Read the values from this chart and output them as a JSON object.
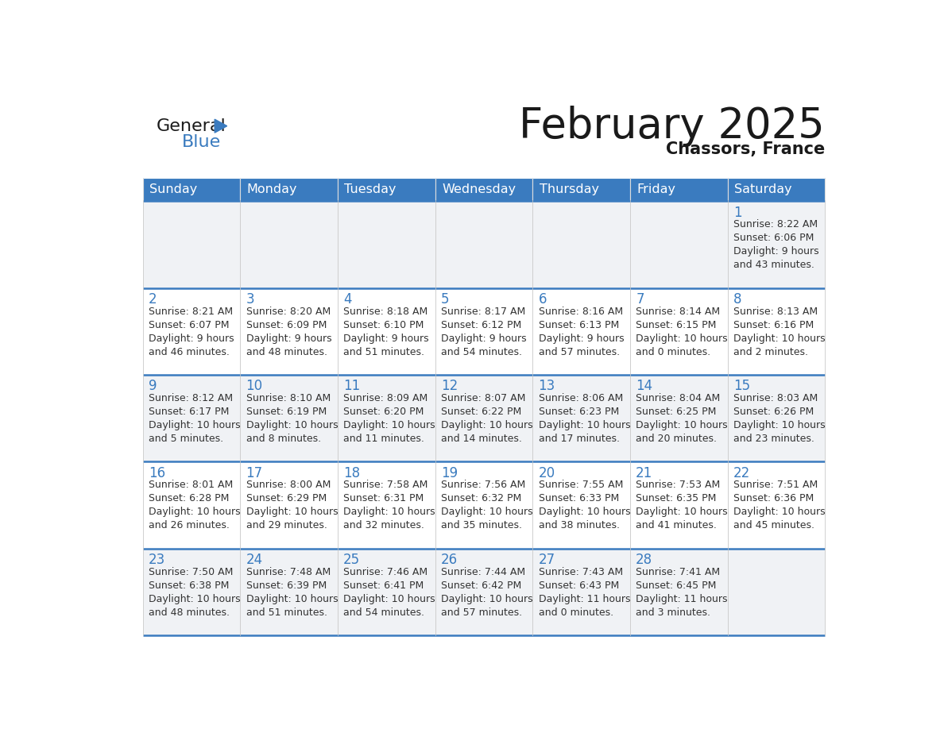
{
  "title": "February 2025",
  "subtitle": "Chassors, France",
  "header_color": "#3a7bbf",
  "header_text_color": "#ffffff",
  "cell_bg_color": "#ffffff",
  "row_separator_color": "#3a7bbf",
  "day_num_color": "#3a7bbf",
  "text_color": "#333333",
  "border_color": "#3a7bbf",
  "grid_color": "#cccccc",
  "days_of_week": [
    "Sunday",
    "Monday",
    "Tuesday",
    "Wednesday",
    "Thursday",
    "Friday",
    "Saturday"
  ],
  "calendar_data": [
    [
      null,
      null,
      null,
      null,
      null,
      null,
      {
        "day": "1",
        "sunrise": "8:22 AM",
        "sunset": "6:06 PM",
        "daylight_h": "9 hours",
        "daylight_m": "and 43 minutes."
      }
    ],
    [
      {
        "day": "2",
        "sunrise": "8:21 AM",
        "sunset": "6:07 PM",
        "daylight_h": "9 hours",
        "daylight_m": "and 46 minutes."
      },
      {
        "day": "3",
        "sunrise": "8:20 AM",
        "sunset": "6:09 PM",
        "daylight_h": "9 hours",
        "daylight_m": "and 48 minutes."
      },
      {
        "day": "4",
        "sunrise": "8:18 AM",
        "sunset": "6:10 PM",
        "daylight_h": "9 hours",
        "daylight_m": "and 51 minutes."
      },
      {
        "day": "5",
        "sunrise": "8:17 AM",
        "sunset": "6:12 PM",
        "daylight_h": "9 hours",
        "daylight_m": "and 54 minutes."
      },
      {
        "day": "6",
        "sunrise": "8:16 AM",
        "sunset": "6:13 PM",
        "daylight_h": "9 hours",
        "daylight_m": "and 57 minutes."
      },
      {
        "day": "7",
        "sunrise": "8:14 AM",
        "sunset": "6:15 PM",
        "daylight_h": "10 hours",
        "daylight_m": "and 0 minutes."
      },
      {
        "day": "8",
        "sunrise": "8:13 AM",
        "sunset": "6:16 PM",
        "daylight_h": "10 hours",
        "daylight_m": "and 2 minutes."
      }
    ],
    [
      {
        "day": "9",
        "sunrise": "8:12 AM",
        "sunset": "6:17 PM",
        "daylight_h": "10 hours",
        "daylight_m": "and 5 minutes."
      },
      {
        "day": "10",
        "sunrise": "8:10 AM",
        "sunset": "6:19 PM",
        "daylight_h": "10 hours",
        "daylight_m": "and 8 minutes."
      },
      {
        "day": "11",
        "sunrise": "8:09 AM",
        "sunset": "6:20 PM",
        "daylight_h": "10 hours",
        "daylight_m": "and 11 minutes."
      },
      {
        "day": "12",
        "sunrise": "8:07 AM",
        "sunset": "6:22 PM",
        "daylight_h": "10 hours",
        "daylight_m": "and 14 minutes."
      },
      {
        "day": "13",
        "sunrise": "8:06 AM",
        "sunset": "6:23 PM",
        "daylight_h": "10 hours",
        "daylight_m": "and 17 minutes."
      },
      {
        "day": "14",
        "sunrise": "8:04 AM",
        "sunset": "6:25 PM",
        "daylight_h": "10 hours",
        "daylight_m": "and 20 minutes."
      },
      {
        "day": "15",
        "sunrise": "8:03 AM",
        "sunset": "6:26 PM",
        "daylight_h": "10 hours",
        "daylight_m": "and 23 minutes."
      }
    ],
    [
      {
        "day": "16",
        "sunrise": "8:01 AM",
        "sunset": "6:28 PM",
        "daylight_h": "10 hours",
        "daylight_m": "and 26 minutes."
      },
      {
        "day": "17",
        "sunrise": "8:00 AM",
        "sunset": "6:29 PM",
        "daylight_h": "10 hours",
        "daylight_m": "and 29 minutes."
      },
      {
        "day": "18",
        "sunrise": "7:58 AM",
        "sunset": "6:31 PM",
        "daylight_h": "10 hours",
        "daylight_m": "and 32 minutes."
      },
      {
        "day": "19",
        "sunrise": "7:56 AM",
        "sunset": "6:32 PM",
        "daylight_h": "10 hours",
        "daylight_m": "and 35 minutes."
      },
      {
        "day": "20",
        "sunrise": "7:55 AM",
        "sunset": "6:33 PM",
        "daylight_h": "10 hours",
        "daylight_m": "and 38 minutes."
      },
      {
        "day": "21",
        "sunrise": "7:53 AM",
        "sunset": "6:35 PM",
        "daylight_h": "10 hours",
        "daylight_m": "and 41 minutes."
      },
      {
        "day": "22",
        "sunrise": "7:51 AM",
        "sunset": "6:36 PM",
        "daylight_h": "10 hours",
        "daylight_m": "and 45 minutes."
      }
    ],
    [
      {
        "day": "23",
        "sunrise": "7:50 AM",
        "sunset": "6:38 PM",
        "daylight_h": "10 hours",
        "daylight_m": "and 48 minutes."
      },
      {
        "day": "24",
        "sunrise": "7:48 AM",
        "sunset": "6:39 PM",
        "daylight_h": "10 hours",
        "daylight_m": "and 51 minutes."
      },
      {
        "day": "25",
        "sunrise": "7:46 AM",
        "sunset": "6:41 PM",
        "daylight_h": "10 hours",
        "daylight_m": "and 54 minutes."
      },
      {
        "day": "26",
        "sunrise": "7:44 AM",
        "sunset": "6:42 PM",
        "daylight_h": "10 hours",
        "daylight_m": "and 57 minutes."
      },
      {
        "day": "27",
        "sunrise": "7:43 AM",
        "sunset": "6:43 PM",
        "daylight_h": "11 hours",
        "daylight_m": "and 0 minutes."
      },
      {
        "day": "28",
        "sunrise": "7:41 AM",
        "sunset": "6:45 PM",
        "daylight_h": "11 hours",
        "daylight_m": "and 3 minutes."
      },
      null
    ]
  ]
}
